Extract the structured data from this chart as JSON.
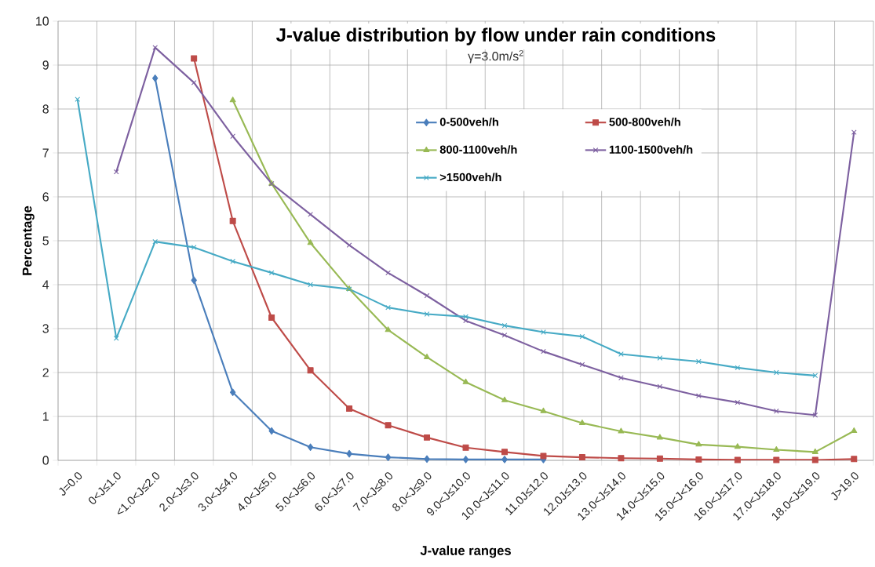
{
  "chart_data": {
    "type": "line",
    "title": "J-value distribution by flow under rain conditions",
    "subtitle": "γ=3.0m/s$^{2}$",
    "xlabel": "J-value ranges",
    "ylabel": "Percentage",
    "categories": [
      "J=0.0",
      "0<J≤1.0",
      "<1.0<J≤2.0",
      "2.0<J≤3.0",
      "3.0<J≤4.0",
      "4.0<J≤5.0",
      "5.0<J≤6.0",
      "6.0<J≤7.0",
      "7.0<J≤8.0",
      "8.0<J≤9.0",
      "9.0<J≤10.0",
      "10.0<J≤11.0",
      "11.0J≤12.0",
      "12.0J≤13.0",
      "13.0<J≤14.0",
      "14.0<J≤15.0",
      "15.0<J<16.0",
      "16.0<J≤17.0",
      "17.0<J≤18.0",
      "18.0<J≤19.0",
      "J>19.0"
    ],
    "series": [
      {
        "name": "0-500veh/h",
        "color": "#4a7ebb",
        "marker": "diamond",
        "values": [
          null,
          null,
          8.7,
          4.1,
          1.55,
          0.67,
          0.3,
          0.15,
          0.07,
          0.03,
          0.02,
          0.02,
          0.02,
          null,
          null,
          null,
          null,
          null,
          null,
          null,
          null
        ]
      },
      {
        "name": "500-800veh/h",
        "color": "#be4b48",
        "marker": "square",
        "values": [
          null,
          null,
          null,
          9.15,
          5.45,
          3.25,
          2.05,
          1.18,
          0.8,
          0.52,
          0.29,
          0.19,
          0.1,
          0.07,
          0.05,
          0.04,
          0.02,
          0.01,
          0.01,
          0.01,
          0.03
        ]
      },
      {
        "name": "800-1100veh/h",
        "color": "#98b954",
        "marker": "triangle",
        "values": [
          null,
          null,
          null,
          null,
          8.2,
          6.3,
          4.95,
          3.9,
          2.97,
          2.35,
          1.78,
          1.37,
          1.12,
          0.85,
          0.66,
          0.52,
          0.36,
          0.31,
          0.24,
          0.19,
          0.67
        ]
      },
      {
        "name": "1100-1500veh/h",
        "color": "#7d60a0",
        "marker": "cross",
        "values": [
          null,
          6.57,
          9.4,
          8.6,
          7.38,
          6.3,
          5.6,
          4.9,
          4.27,
          3.75,
          3.18,
          2.85,
          2.48,
          2.18,
          1.88,
          1.68,
          1.47,
          1.32,
          1.12,
          1.03,
          7.47
        ]
      },
      {
        "name": ">1500veh/h",
        "color": "#46aac5",
        "marker": "cross",
        "values": [
          8.22,
          2.78,
          4.98,
          4.85,
          4.53,
          4.27,
          4.0,
          3.9,
          3.48,
          3.33,
          3.27,
          3.07,
          2.92,
          2.82,
          2.42,
          2.33,
          2.25,
          2.11,
          2.0,
          1.93,
          null
        ]
      }
    ],
    "ylim": [
      0,
      10
    ],
    "yticks": [
      0,
      1,
      2,
      3,
      4,
      5,
      6,
      7,
      8,
      9,
      10
    ],
    "grid": true,
    "legend": "top right",
    "line_style": "solid"
  }
}
